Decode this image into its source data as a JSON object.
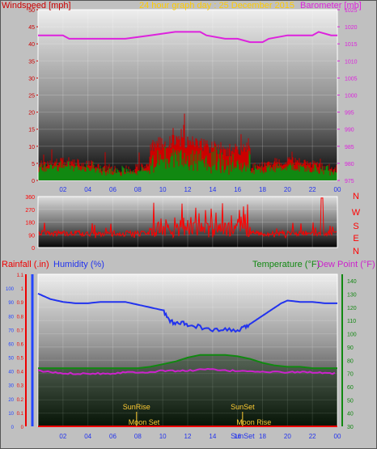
{
  "header": {
    "left": "Windspeed [mph]",
    "center": "24 hour graph day : 25 December 2015",
    "right": "Barometer [mb]"
  },
  "colors": {
    "windspeed": "#cc0000",
    "gust": "#ff3333",
    "avg_wind": "#118811",
    "barometer": "#dd22dd",
    "direction": "#ff0000",
    "humidity": "#2233ee",
    "temperature": "#118811",
    "dewpoint": "#cc22cc",
    "rain_axis": "#ee0000",
    "hum_axis": "#2244ff",
    "temp_axis": "#118811",
    "events": "#ffcc33",
    "frame": "#ffffff"
  },
  "chart_data": [
    {
      "type": "line",
      "title": "24 hour graph day : 25 December 2015",
      "x_ticks": [
        "02",
        "04",
        "06",
        "08",
        "10",
        "12",
        "14",
        "16",
        "18",
        "20",
        "22",
        "00"
      ],
      "y_left": {
        "label": "Windspeed [mph]",
        "ticks": [
          "0",
          "5",
          "10",
          "15",
          "20",
          "25",
          "30",
          "35",
          "40",
          "45",
          "50"
        ],
        "range": [
          0,
          50
        ]
      },
      "y_right": {
        "label": "Barometer [mb]",
        "ticks": [
          "975",
          "980",
          "985",
          "990",
          "995",
          "1000",
          "1005",
          "1010",
          "1015",
          "1020",
          "1025"
        ],
        "range": [
          975,
          1025
        ]
      },
      "x_range": [
        0,
        24
      ],
      "series": [
        {
          "points": [
            [
              0,
              1017.5
            ],
            [
              1,
              1017.5
            ],
            [
              2,
              1017.5
            ],
            [
              2.5,
              1016.5
            ],
            [
              5,
              1016.5
            ],
            [
              7,
              1016.5
            ],
            [
              9,
              1017.5
            ],
            [
              11,
              1018.5
            ],
            [
              13,
              1018.5
            ],
            [
              13.5,
              1017.5
            ],
            [
              15,
              1016.5
            ],
            [
              16,
              1016.5
            ],
            [
              17,
              1015.5
            ],
            [
              18,
              1015.5
            ],
            [
              18.5,
              1016.5
            ],
            [
              20,
              1017.5
            ],
            [
              22,
              1017.5
            ],
            [
              22.5,
              1018.5
            ],
            [
              23.5,
              1017.5
            ],
            [
              24,
              1017.5
            ]
          ]
        }
      ]
    },
    {
      "type": "line",
      "y_left": {
        "ticks": [
          "0",
          "90",
          "180",
          "270",
          "360"
        ],
        "range": [
          0,
          360
        ]
      },
      "y_right": {
        "ticks": [
          "N",
          "W",
          "S",
          "E",
          "N"
        ]
      },
      "x_range": [
        0,
        24
      ]
    },
    {
      "type": "line",
      "y_left_rain": {
        "label": "Rainfall (.in)",
        "ticks": [
          "0",
          "0.1",
          "0.2",
          "0.3",
          "0.4",
          "0.5",
          "0.6",
          "0.7",
          "0.8",
          "0.9",
          "1",
          "1.1"
        ],
        "range": [
          0,
          1.1
        ]
      },
      "y_left_hum": {
        "label": "Humidity (%)",
        "ticks": [
          "0",
          "10",
          "20",
          "30",
          "40",
          "50",
          "60",
          "70",
          "80",
          "90",
          "100"
        ],
        "range": [
          0,
          110
        ]
      },
      "y_right": {
        "label": "Temperature (°F)",
        "label2": "Dew Point (°F)",
        "ticks": [
          "30",
          "40",
          "50",
          "60",
          "70",
          "80",
          "90",
          "100",
          "110",
          "120",
          "130",
          "140"
        ],
        "range": [
          30,
          145
        ]
      },
      "x_ticks": [
        "02",
        "04",
        "06",
        "08",
        "10",
        "12",
        "14",
        "16",
        "18",
        "20",
        "22",
        "00"
      ],
      "x_range": [
        0,
        24
      ],
      "events": [
        {
          "label": "SunRise",
          "x": 7.9,
          "row": "mid"
        },
        {
          "label": "SunSet",
          "x": 16.4,
          "row": "mid"
        },
        {
          "label": "Moon Set",
          "x": 8.5,
          "row": "bottom"
        },
        {
          "label": "Moon Rise",
          "x": 17.3,
          "row": "bottom"
        },
        {
          "label": "SunSet",
          "x": 16.4,
          "row": "axis"
        }
      ],
      "series": [
        {
          "name": "Humidity (%)",
          "axis": "hum",
          "points": [
            [
              0,
              96
            ],
            [
              0.5,
              94
            ],
            [
              1,
              92
            ],
            [
              1.5,
              91
            ],
            [
              2,
              90
            ],
            [
              3,
              89
            ],
            [
              4,
              89
            ],
            [
              5,
              90
            ],
            [
              6,
              90
            ],
            [
              7,
              90
            ],
            [
              8,
              88
            ],
            [
              9,
              86
            ],
            [
              10,
              84
            ],
            [
              10.5,
              77
            ],
            [
              11,
              74
            ],
            [
              11.5,
              75
            ],
            [
              12,
              73
            ],
            [
              13,
              72
            ],
            [
              14,
              69
            ],
            [
              15,
              70
            ],
            [
              16,
              69
            ],
            [
              16.5,
              71
            ],
            [
              17,
              74
            ],
            [
              17.5,
              77
            ],
            [
              18,
              80
            ],
            [
              18.5,
              83
            ],
            [
              19,
              86
            ],
            [
              19.5,
              89
            ],
            [
              20,
              91
            ],
            [
              21,
              90
            ],
            [
              22,
              90
            ],
            [
              23,
              89
            ],
            [
              24,
              89
            ]
          ]
        },
        {
          "name": "Temperature (°F)",
          "axis": "temp",
          "points": [
            [
              0,
              74
            ],
            [
              2,
              74
            ],
            [
              4,
              74
            ],
            [
              6,
              74
            ],
            [
              8,
              74
            ],
            [
              9,
              75
            ],
            [
              10,
              77
            ],
            [
              11,
              79
            ],
            [
              12,
              82
            ],
            [
              13,
              84
            ],
            [
              14,
              84
            ],
            [
              15,
              84
            ],
            [
              16,
              83
            ],
            [
              17,
              81
            ],
            [
              18,
              78
            ],
            [
              19,
              76
            ],
            [
              20,
              75
            ],
            [
              21,
              75
            ],
            [
              22,
              74
            ],
            [
              23,
              74
            ],
            [
              24,
              74
            ]
          ]
        },
        {
          "name": "Dew Point (°F)",
          "axis": "temp",
          "points": [
            [
              0,
              72
            ],
            [
              1,
              71
            ],
            [
              2,
              70
            ],
            [
              3,
              70
            ],
            [
              4,
              70
            ],
            [
              5,
              70
            ],
            [
              6,
              70
            ],
            [
              7,
              71
            ],
            [
              8,
              71
            ],
            [
              9,
              71
            ],
            [
              10,
              72
            ],
            [
              11,
              72
            ],
            [
              12,
              72
            ],
            [
              13,
              73
            ],
            [
              14,
              73
            ],
            [
              15,
              72
            ],
            [
              16,
              72
            ],
            [
              17,
              72
            ],
            [
              18,
              71
            ],
            [
              19,
              71
            ],
            [
              20,
              71
            ],
            [
              21,
              71
            ],
            [
              22,
              71
            ],
            [
              23,
              70
            ],
            [
              24,
              70
            ]
          ]
        },
        {
          "name": "Rainfall (.in)",
          "axis": "rain",
          "points": [
            [
              0,
              0
            ],
            [
              24,
              0
            ]
          ]
        }
      ]
    }
  ]
}
